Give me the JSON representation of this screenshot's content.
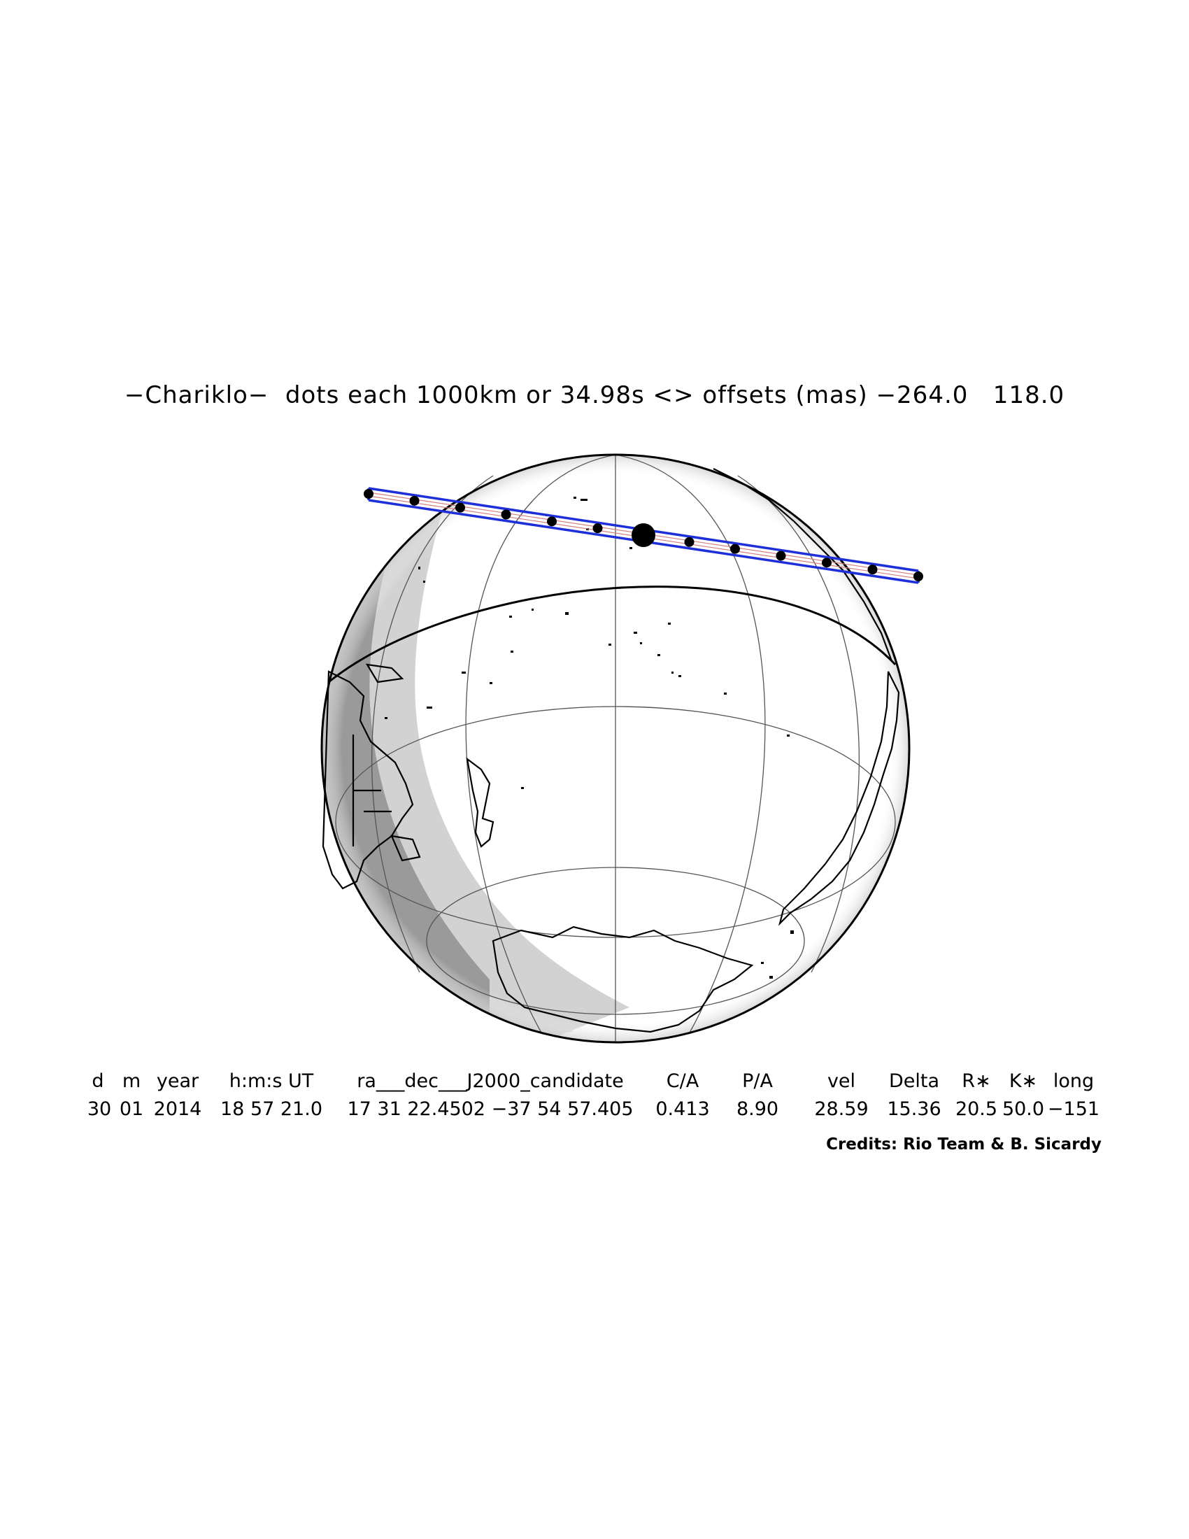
{
  "title": "−Chariklo−  dots each 1000km or 34.98s <> offsets (mas) −264.0   118.0",
  "table": {
    "headers": [
      "d",
      "m",
      "year",
      "h:m:s UT",
      "ra___dec___J2000_candidate",
      "C/A",
      "P/A",
      "vel",
      "Delta",
      "R∗",
      "K∗",
      "long"
    ],
    "values": [
      "30",
      "01",
      "2014",
      "18 57 21.0",
      "17 31 22.4502 −37 54 57.405",
      "0.413",
      "8.90",
      "28.59",
      "15.36",
      "20.5",
      "50.0",
      "−151"
    ]
  },
  "credits": "Credits: Rio Team & B. Sicardy",
  "colors": {
    "shadow_path": "#1f2fd8",
    "night": "#9a9a9a",
    "twilight": "#d2d2d2",
    "outline": "#000000"
  },
  "track": {
    "dots": 13,
    "closest_approach_dot": 7
  }
}
